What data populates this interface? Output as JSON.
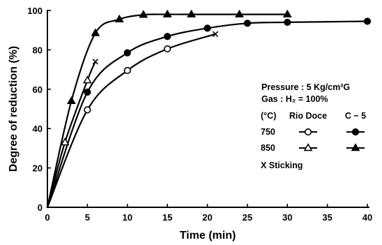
{
  "chart_data": {
    "type": "line",
    "xlabel": "Time  (min)",
    "ylabel": "Degree of reduction  (%)",
    "xlim": [
      0,
      40
    ],
    "ylim": [
      0,
      100
    ],
    "xticks": [
      0,
      5,
      10,
      15,
      20,
      25,
      30,
      35,
      40
    ],
    "yticks": [
      0,
      20,
      40,
      60,
      80,
      100
    ],
    "grid": false,
    "legend_position": "right",
    "legend": {
      "conditions": [
        "Pressure :  5 Kg/cm²G",
        "Gas       :  H₂ = 100%"
      ],
      "unit_header": "(°C)",
      "col_headers": [
        "Rio Doce",
        "C − 5"
      ],
      "rows": [
        "750",
        "850"
      ],
      "sticking": "X  Sticking"
    },
    "series": [
      {
        "name": "Rio Doce 750",
        "marker": "open-circle",
        "x": [
          0,
          5,
          10,
          15
        ],
        "y": [
          0,
          49.5,
          69.5,
          80.5
        ],
        "curve_end": [
          21,
          88
        ],
        "sticking_x": 21,
        "sticking_y": 88
      },
      {
        "name": "Rio Doce 850",
        "marker": "open-triangle",
        "x": [
          0,
          2.2,
          5
        ],
        "y": [
          0,
          33,
          64.5
        ],
        "curve_end": [
          6,
          74
        ],
        "sticking_x": 6,
        "sticking_y": 74
      },
      {
        "name": "C-5 750",
        "marker": "filled-circle",
        "x": [
          0,
          5,
          10,
          15,
          20,
          25,
          30,
          40
        ],
        "y": [
          0,
          58.5,
          78.5,
          86.8,
          91,
          93.5,
          94,
          94.5
        ],
        "curve_end": [
          40,
          94.5
        ]
      },
      {
        "name": "C-5 850",
        "marker": "filled-triangle",
        "x": [
          0,
          3,
          6,
          9,
          12,
          15,
          18,
          24,
          30
        ],
        "y": [
          0,
          54,
          88.5,
          95.5,
          97.8,
          98,
          98,
          98,
          98
        ],
        "curve_end": [
          30,
          98
        ]
      }
    ]
  }
}
